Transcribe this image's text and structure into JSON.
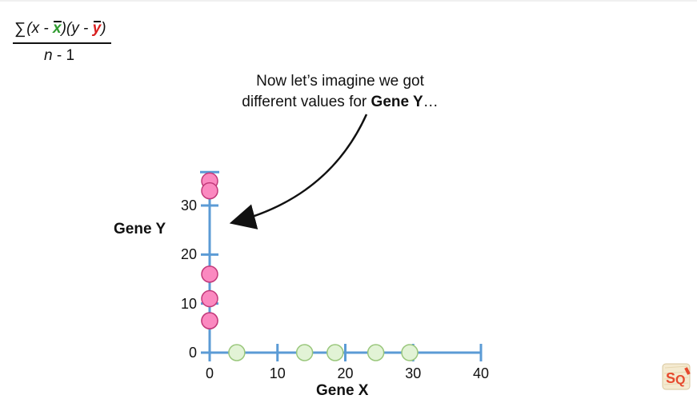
{
  "formula": {
    "numerator_sigma": "∑",
    "numerator_open_x": "(x - ",
    "numerator_xbar": "x",
    "numerator_mid": ")(y - ",
    "numerator_ybar": "y",
    "numerator_close": ")",
    "denominator_n": "n",
    "denominator_rest": " - 1"
  },
  "note": {
    "line1": "Now let’s imagine we got",
    "line2_prefix": "different values for ",
    "line2_bold": "Gene Y",
    "line2_suffix": "…"
  },
  "chart_data": {
    "type": "scatter",
    "xlabel": "Gene X",
    "ylabel": "Gene Y",
    "xlim": [
      0,
      40
    ],
    "ylim": [
      0,
      36
    ],
    "x_ticks": [
      0,
      10,
      20,
      30,
      40
    ],
    "y_ticks": [
      0,
      10,
      20,
      30
    ],
    "axis_color": "#5b9bd5",
    "x_points": {
      "fill": "#e2f3d6",
      "stroke": "#9ac77c",
      "x": [
        4,
        14,
        18.5,
        24.5,
        29.5
      ],
      "y": [
        0,
        0,
        0,
        0,
        0
      ]
    },
    "y_points": {
      "fill": "#fb89c0",
      "stroke": "#c2397a",
      "x": [
        0,
        0,
        0,
        0,
        0,
        0
      ],
      "y": [
        35,
        33,
        16,
        11,
        6.5,
        6.5
      ]
    }
  }
}
